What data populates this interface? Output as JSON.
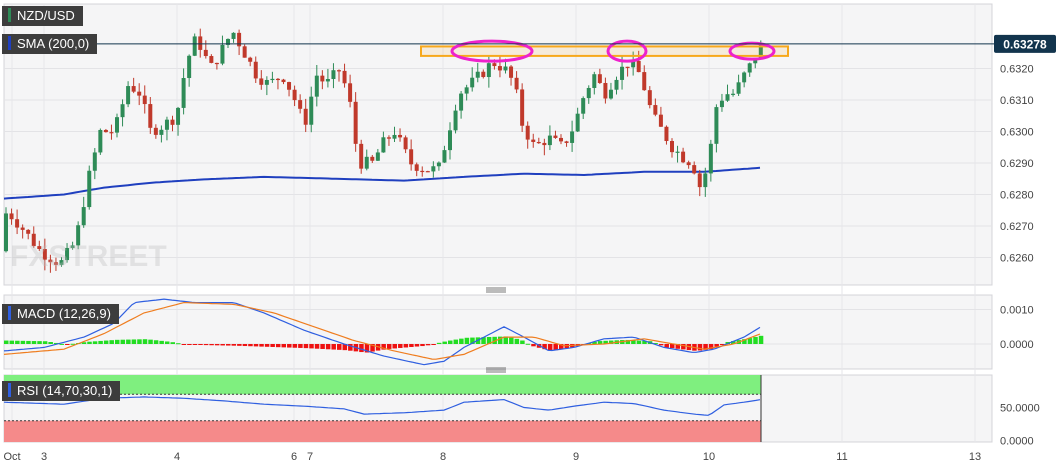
{
  "symbol": "NZD/USD",
  "price_badge": "0.63278",
  "watermark": "FXSTREET",
  "indicators": {
    "sma": "SMA (200,0)",
    "macd": "MACD (12,26,9)",
    "rsi": "RSI (14,70,30,1)"
  },
  "colors": {
    "bull": "#2e8b57",
    "bear": "#c0392b",
    "sma": "#1f3fbf",
    "macd_line": "#2f5fe0",
    "signal_line": "#ef7d1f",
    "hist_pos": "#22dd22",
    "hist_neg": "#ee1111",
    "rsi_line": "#2f5fe0",
    "rsi_over": "#7fef7f",
    "rsi_under": "#f58a8a",
    "resistance": "#f7a81b",
    "highlight": "#ee22cc",
    "price_badge": "#12344d"
  },
  "chart_data": {
    "type": "candlestick",
    "price_axis": {
      "ticks": [
        "0.6260",
        "0.6270",
        "0.6280",
        "0.6290",
        "0.6300",
        "0.6310",
        "0.6320"
      ],
      "ylim": [
        0.625,
        0.634
      ]
    },
    "macd_axis": {
      "ticks": [
        "0.0010",
        "0.0000"
      ]
    },
    "rsi_axis": {
      "ticks": [
        "50.0000",
        "0.0000"
      ]
    },
    "x_axis": {
      "ticks": [
        "Oct",
        "3",
        "4",
        "6",
        "7",
        "8",
        "9",
        "10",
        "11",
        "13"
      ]
    },
    "last_price": 0.63278,
    "resistance_zone": [
      0.6324,
      0.6327
    ]
  }
}
